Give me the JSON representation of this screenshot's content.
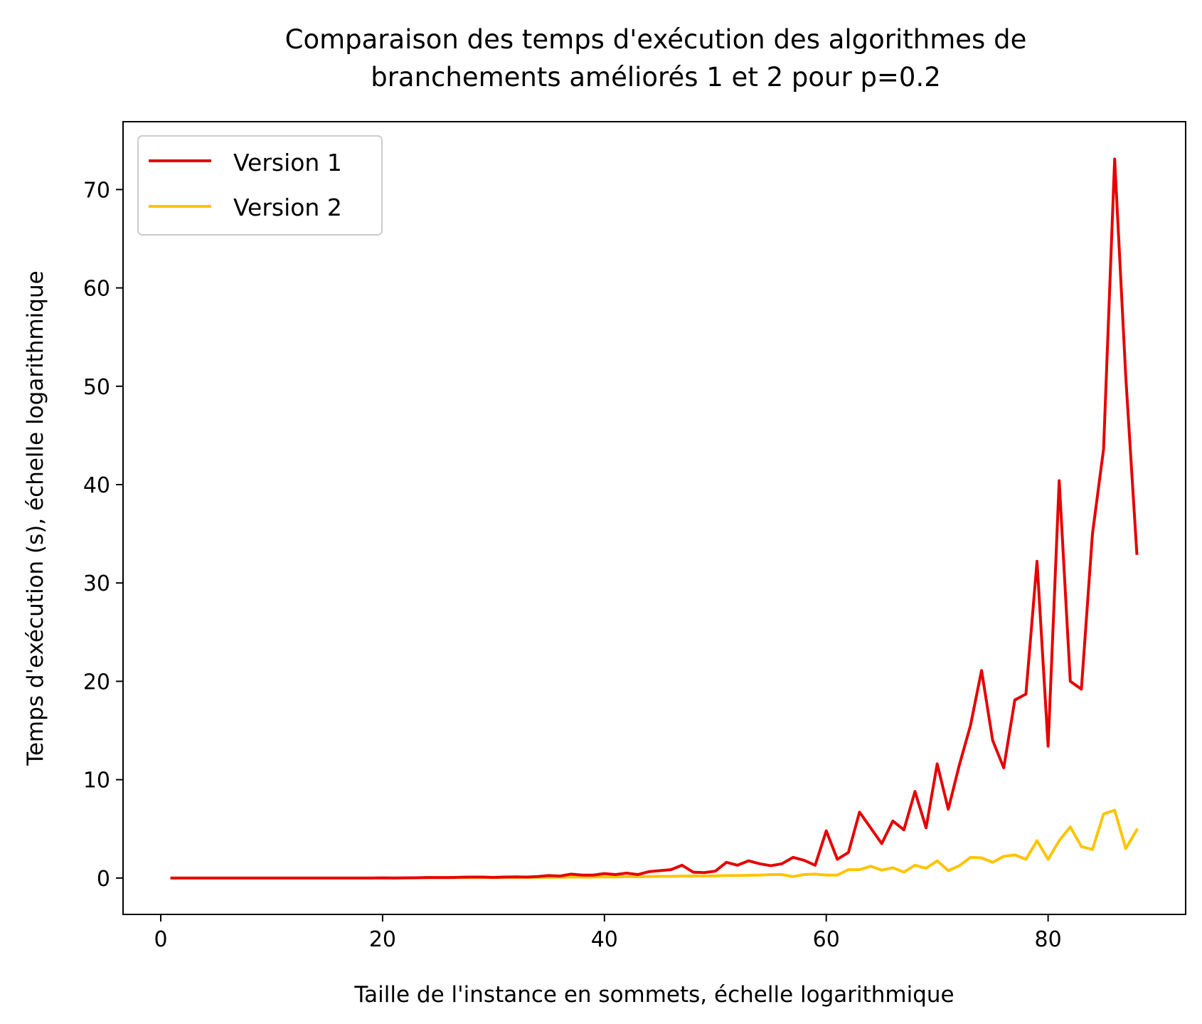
{
  "chart_data": {
    "type": "line",
    "title_lines": [
      "Comparaison des temps d'exécution des algorithmes de",
      "branchements améliorés 1 et 2 pour p=0.2"
    ],
    "xlabel": "Taille de l'instance en sommets, échelle logarithmique",
    "ylabel": "Temps d'exécution (s), échelle logarithmique",
    "xlim": [
      -3.4,
      92.4
    ],
    "ylim": [
      -3.7,
      76.9
    ],
    "xticks": [
      0,
      20,
      40,
      60,
      80
    ],
    "yticks": [
      0,
      10,
      20,
      30,
      40,
      50,
      60,
      70
    ],
    "xtick_labels": [
      "0",
      "20",
      "40",
      "60",
      "80"
    ],
    "ytick_labels": [
      "0",
      "10",
      "20",
      "30",
      "40",
      "50",
      "60",
      "70"
    ],
    "grid": false,
    "legend_position": "upper-left",
    "x": [
      1,
      2,
      3,
      4,
      5,
      6,
      7,
      8,
      9,
      10,
      11,
      12,
      13,
      14,
      15,
      16,
      17,
      18,
      19,
      20,
      21,
      22,
      23,
      24,
      25,
      26,
      27,
      28,
      29,
      30,
      31,
      32,
      33,
      34,
      35,
      36,
      37,
      38,
      39,
      40,
      41,
      42,
      43,
      44,
      45,
      46,
      47,
      48,
      49,
      50,
      51,
      52,
      53,
      54,
      55,
      56,
      57,
      58,
      59,
      60,
      61,
      62,
      63,
      64,
      65,
      66,
      67,
      68,
      69,
      70,
      71,
      72,
      73,
      74,
      75,
      76,
      77,
      78,
      79,
      80,
      81,
      82,
      83,
      84,
      85,
      86,
      87,
      88
    ],
    "series": [
      {
        "name": "Version 1",
        "color": "#e60000",
        "values": [
          0,
          0,
          0,
          0,
          0,
          0,
          0,
          0,
          0,
          0,
          0,
          0,
          0,
          0,
          0,
          0,
          0,
          0,
          0,
          0.02,
          0,
          0.02,
          0.03,
          0.05,
          0.05,
          0.05,
          0.08,
          0.1,
          0.1,
          0.06,
          0.1,
          0.12,
          0.1,
          0.15,
          0.25,
          0.2,
          0.4,
          0.3,
          0.3,
          0.45,
          0.35,
          0.5,
          0.35,
          0.65,
          0.75,
          0.85,
          1.3,
          0.6,
          0.55,
          0.7,
          1.6,
          1.3,
          1.75,
          1.45,
          1.25,
          1.45,
          2.1,
          1.8,
          1.3,
          4.8,
          1.9,
          2.6,
          6.7,
          5.1,
          3.5,
          5.8,
          4.9,
          8.8,
          5.1,
          11.6,
          7.0,
          11.5,
          15.5,
          21.1,
          14.0,
          11.2,
          18.1,
          18.7,
          32.2,
          13.4,
          40.4,
          20.0,
          19.2,
          35.0,
          43.6,
          73.1,
          51.0,
          33.0
        ]
      },
      {
        "name": "Version 2",
        "color": "#ffc400",
        "values": [
          0,
          0,
          0,
          0,
          0,
          0,
          0,
          0,
          0,
          0,
          0,
          0,
          0,
          0,
          0,
          0,
          0,
          0,
          0,
          0.01,
          0,
          0.01,
          0.02,
          0.03,
          0.03,
          0.03,
          0.04,
          0.05,
          0.05,
          0.04,
          0.05,
          0.06,
          0.06,
          0.07,
          0.08,
          0.08,
          0.1,
          0.1,
          0.1,
          0.12,
          0.12,
          0.15,
          0.13,
          0.15,
          0.17,
          0.17,
          0.2,
          0.2,
          0.2,
          0.22,
          0.25,
          0.25,
          0.28,
          0.3,
          0.35,
          0.35,
          0.15,
          0.35,
          0.4,
          0.3,
          0.3,
          0.85,
          0.85,
          1.2,
          0.8,
          1.05,
          0.6,
          1.3,
          1.0,
          1.75,
          0.75,
          1.25,
          2.1,
          2.05,
          1.6,
          2.2,
          2.35,
          1.9,
          3.8,
          1.9,
          3.8,
          5.2,
          3.2,
          2.9,
          6.5,
          6.9,
          3.0,
          4.9
        ]
      }
    ]
  }
}
